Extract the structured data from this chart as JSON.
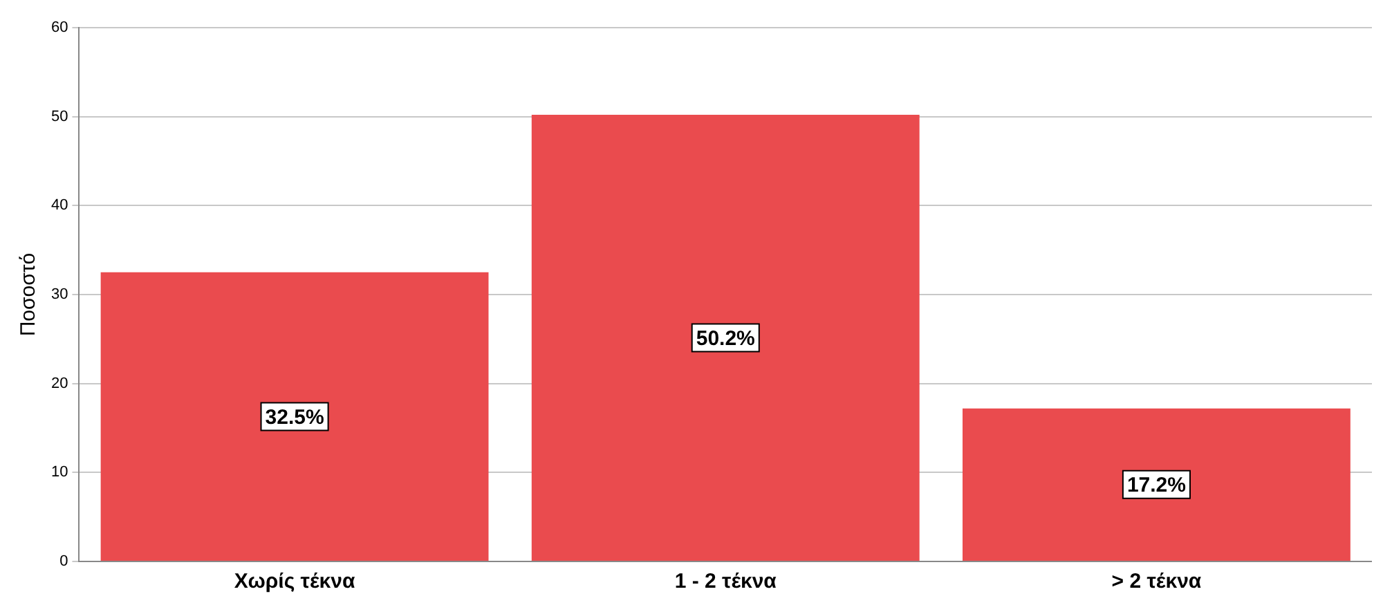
{
  "chart_data": {
    "type": "bar",
    "ylabel": "Ποσοστό",
    "categories": [
      "Χωρίς τέκνα",
      "1 - 2 τέκνα",
      "> 2 τέκνα"
    ],
    "values": [
      32.5,
      50.2,
      17.2
    ],
    "color": "#ea4b4e",
    "value_labels": [
      "32.5%",
      "50.2%",
      "17.2%"
    ],
    "ylim": [
      0,
      60
    ],
    "yticks": [
      0,
      10,
      20,
      30,
      40,
      50,
      60
    ],
    "grid": "y",
    "legend": false
  }
}
